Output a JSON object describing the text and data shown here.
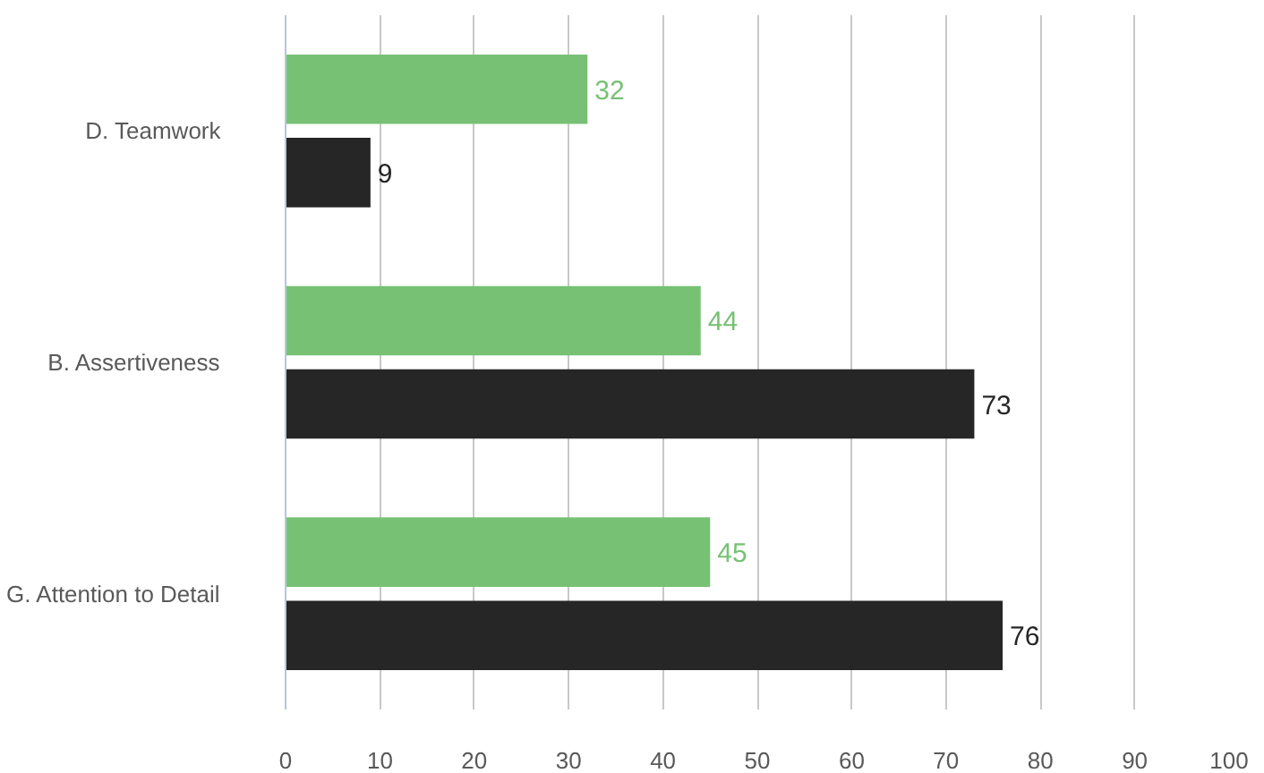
{
  "chart_data": {
    "type": "bar",
    "orientation": "horizontal",
    "categories": [
      "D. Teamwork",
      "B. Assertiveness",
      "G. Attention to Detail"
    ],
    "series": [
      {
        "color": "#77c175",
        "values": [
          32,
          44,
          45
        ]
      },
      {
        "color": "#262626",
        "values": [
          9,
          73,
          76
        ]
      }
    ],
    "xlim": [
      0,
      100
    ],
    "xticks": [
      0,
      10,
      20,
      30,
      40,
      50,
      60,
      70,
      80,
      90,
      100
    ],
    "grid": "x",
    "data_labels": true
  }
}
